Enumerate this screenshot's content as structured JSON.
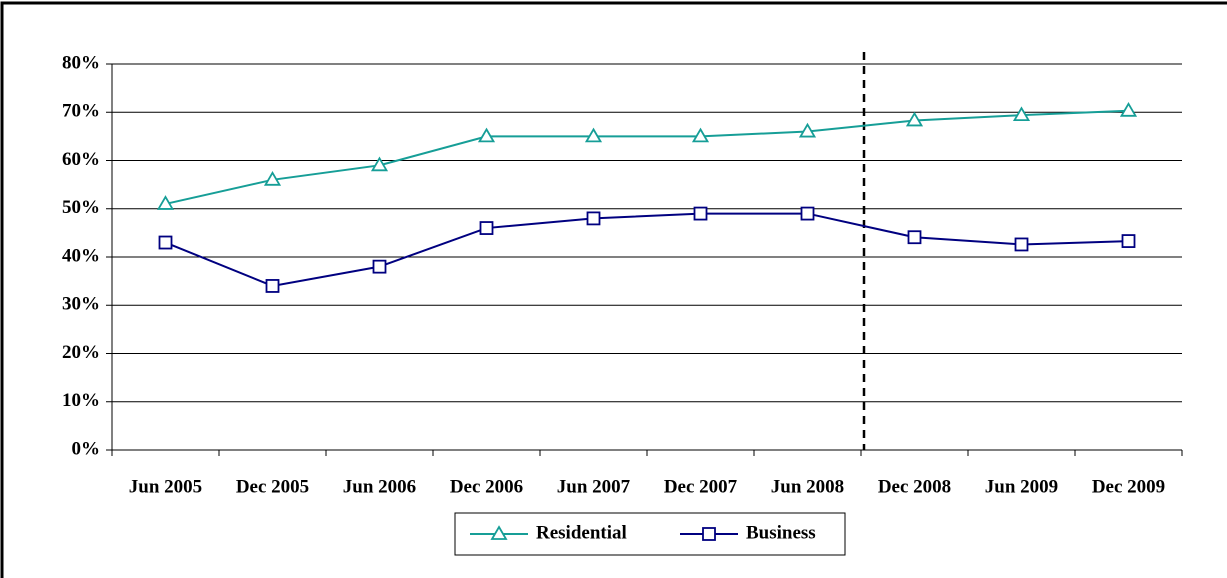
{
  "chart_data": {
    "type": "line",
    "categories": [
      "Jun 2005",
      "Dec 2005",
      "Jun 2006",
      "Dec 2006",
      "Jun 2007",
      "Dec 2007",
      "Jun 2008",
      "Dec 2008",
      "Jun 2009",
      "Dec 2009"
    ],
    "series": [
      {
        "name": "Residential",
        "color": "#169e97",
        "marker": "triangle",
        "values": [
          51,
          56,
          59,
          65,
          65,
          65,
          66,
          68.3,
          69.4,
          70.3
        ]
      },
      {
        "name": "Business",
        "color": "#000080",
        "marker": "square",
        "values": [
          43,
          34,
          38,
          46,
          48,
          49,
          49,
          44.1,
          42.6,
          43.3
        ]
      }
    ],
    "ylim": [
      0,
      80
    ],
    "yticks": [
      {
        "value": 0,
        "label": "0%"
      },
      {
        "value": 10,
        "label": "10%"
      },
      {
        "value": 20,
        "label": "20%"
      },
      {
        "value": 30,
        "label": "30%"
      },
      {
        "value": 40,
        "label": "40%"
      },
      {
        "value": 50,
        "label": "50%"
      },
      {
        "value": 60,
        "label": "60%"
      },
      {
        "value": 70,
        "label": "70%"
      },
      {
        "value": 80,
        "label": "80%"
      }
    ],
    "grid": true,
    "legend": "bottom"
  }
}
